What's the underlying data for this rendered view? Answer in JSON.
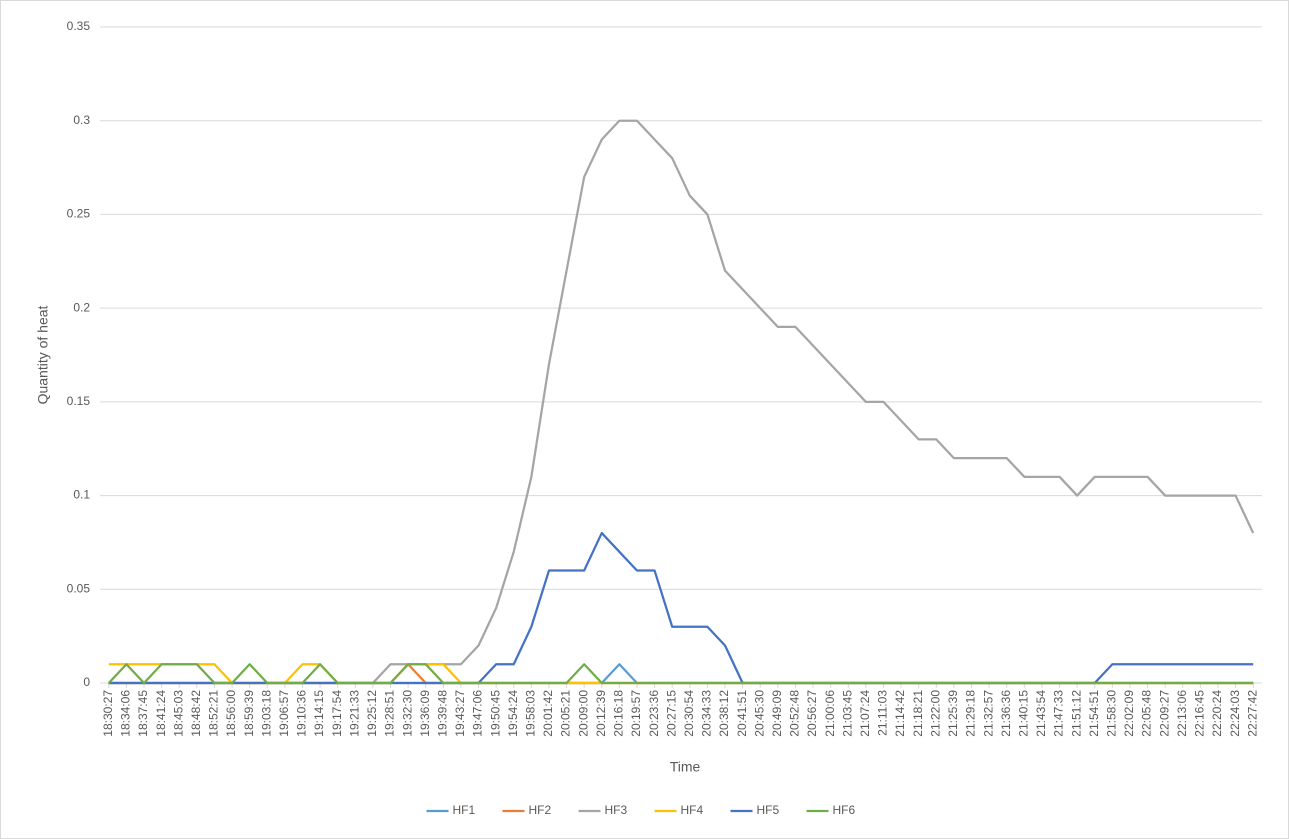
{
  "chart_data": {
    "type": "line",
    "x_label": "Time",
    "y_label": "Quantity of heat",
    "categories": [
      "18:30:27",
      "18:34:06",
      "18:37:45",
      "18:41:24",
      "18:45:03",
      "18:48:42",
      "18:52:21",
      "18:56:00",
      "18:59:39",
      "19:03:18",
      "19:06:57",
      "19:10:36",
      "19:14:15",
      "19:17:54",
      "19:21:33",
      "19:25:12",
      "19:28:51",
      "19:32:30",
      "19:36:09",
      "19:39:48",
      "19:43:27",
      "19:47:06",
      "19:50:45",
      "19:54:24",
      "19:58:03",
      "20:01:42",
      "20:05:21",
      "20:09:00",
      "20:12:39",
      "20:16:18",
      "20:19:57",
      "20:23:36",
      "20:27:15",
      "20:30:54",
      "20:34:33",
      "20:38:12",
      "20:41:51",
      "20:45:30",
      "20:49:09",
      "20:52:48",
      "20:56:27",
      "21:00:06",
      "21:03:45",
      "21:07:24",
      "21:11:03",
      "21:14:42",
      "21:18:21",
      "21:22:00",
      "21:25:39",
      "21:29:18",
      "21:32:57",
      "21:36:36",
      "21:40:15",
      "21:43:54",
      "21:47:33",
      "21:51:12",
      "21:54:51",
      "21:58:30",
      "22:02:09",
      "22:05:48",
      "22:09:27",
      "22:13:06",
      "22:16:45",
      "22:20:24",
      "22:24:03",
      "22:27:42"
    ],
    "series": [
      {
        "name": "HF1",
        "color": "#5b9bd5",
        "values": [
          0,
          0,
          0,
          0,
          0,
          0,
          0,
          0,
          0,
          0,
          0,
          0,
          0,
          0,
          0,
          0,
          0,
          0,
          0,
          0,
          0,
          0,
          0,
          0,
          0,
          0,
          0,
          0,
          0,
          0.01,
          0,
          0,
          0,
          0,
          0,
          0,
          0,
          0,
          0,
          0,
          0,
          0,
          0,
          0,
          0,
          0,
          0,
          0,
          0,
          0,
          0,
          0,
          0,
          0,
          0,
          0,
          0,
          0,
          0,
          0,
          0,
          0,
          0,
          0,
          0,
          0
        ]
      },
      {
        "name": "HF2",
        "color": "#ed7d31",
        "values": [
          0,
          0,
          0,
          0,
          0,
          0,
          0,
          0,
          0,
          0,
          0,
          0,
          0,
          0,
          0,
          0,
          0,
          0.01,
          0,
          0,
          0,
          0,
          0,
          0,
          0,
          0,
          0,
          0,
          0,
          0,
          0,
          0,
          0,
          0,
          0,
          0,
          0,
          0,
          0,
          0,
          0,
          0,
          0,
          0,
          0,
          0,
          0,
          0,
          0,
          0,
          0,
          0,
          0,
          0,
          0,
          0,
          0,
          0,
          0,
          0,
          0,
          0,
          0,
          0,
          0,
          0
        ]
      },
      {
        "name": "HF3",
        "color": "#a5a5a5",
        "values": [
          0,
          0,
          0,
          0,
          0,
          0,
          0,
          0,
          0,
          0,
          0,
          0,
          0,
          0,
          0,
          0,
          0.01,
          0.01,
          0.01,
          0.01,
          0.01,
          0.02,
          0.04,
          0.07,
          0.11,
          0.17,
          0.22,
          0.27,
          0.29,
          0.3,
          0.3,
          0.29,
          0.28,
          0.26,
          0.25,
          0.22,
          0.21,
          0.2,
          0.19,
          0.19,
          0.18,
          0.17,
          0.16,
          0.15,
          0.15,
          0.14,
          0.13,
          0.13,
          0.12,
          0.12,
          0.12,
          0.12,
          0.11,
          0.11,
          0.11,
          0.1,
          0.11,
          0.11,
          0.11,
          0.11,
          0.1,
          0.1,
          0.1,
          0.1,
          0.1,
          0.08
        ]
      },
      {
        "name": "HF4",
        "color": "#ffc000",
        "values": [
          0.01,
          0.01,
          0.01,
          0.01,
          0.01,
          0.01,
          0.01,
          0,
          0,
          0,
          0,
          0.01,
          0.01,
          0,
          0,
          0,
          0,
          0.01,
          0.01,
          0.01,
          0,
          0,
          0,
          0,
          0,
          0,
          0,
          0,
          0,
          0,
          0,
          0,
          0,
          0,
          0,
          0,
          0,
          0,
          0,
          0,
          0,
          0,
          0,
          0,
          0,
          0,
          0,
          0,
          0,
          0,
          0,
          0,
          0,
          0,
          0,
          0,
          0,
          0,
          0,
          0,
          0,
          0,
          0,
          0,
          0,
          0
        ]
      },
      {
        "name": "HF5",
        "color": "#4472c4",
        "values": [
          0,
          0,
          0,
          0,
          0,
          0,
          0,
          0,
          0,
          0,
          0,
          0,
          0,
          0,
          0,
          0,
          0,
          0,
          0,
          0,
          0,
          0,
          0.01,
          0.01,
          0.03,
          0.06,
          0.06,
          0.06,
          0.08,
          0.07,
          0.06,
          0.06,
          0.03,
          0.03,
          0.03,
          0.02,
          0,
          0,
          0,
          0,
          0,
          0,
          0,
          0,
          0,
          0,
          0,
          0,
          0,
          0,
          0,
          0,
          0,
          0,
          0,
          0,
          0,
          0.01,
          0.01,
          0.01,
          0.01,
          0.01,
          0.01,
          0.01,
          0.01,
          0.01
        ]
      },
      {
        "name": "HF6",
        "color": "#70ad47",
        "values": [
          0,
          0.01,
          0,
          0.01,
          0.01,
          0.01,
          0,
          0,
          0.01,
          0,
          0,
          0,
          0.01,
          0,
          0,
          0,
          0,
          0.01,
          0.01,
          0,
          0,
          0,
          0,
          0,
          0,
          0,
          0,
          0.01,
          0,
          0,
          0,
          0,
          0,
          0,
          0,
          0,
          0,
          0,
          0,
          0,
          0,
          0,
          0,
          0,
          0,
          0,
          0,
          0,
          0,
          0,
          0,
          0,
          0,
          0,
          0,
          0,
          0,
          0,
          0,
          0,
          0,
          0,
          0,
          0,
          0,
          0
        ]
      }
    ],
    "ylim": [
      0,
      0.35
    ],
    "yticks": [
      0,
      0.05,
      0.1,
      0.15,
      0.2,
      0.25,
      0.3,
      0.35
    ],
    "grid": true,
    "legend": "bottom"
  }
}
